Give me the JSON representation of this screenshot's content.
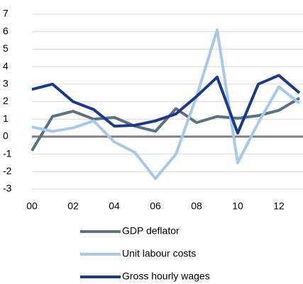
{
  "chart_data": {
    "type": "line",
    "categories": [
      "00",
      null,
      "02",
      null,
      "04",
      null,
      "06",
      null,
      "08",
      null,
      "10",
      null,
      "12",
      null
    ],
    "series": [
      {
        "name": "GDP deflator",
        "color": "#5b7282",
        "values": [
          -0.8,
          1.15,
          1.45,
          1.0,
          1.1,
          0.6,
          0.3,
          1.6,
          0.8,
          1.15,
          1.05,
          1.2,
          1.5,
          2.2
        ]
      },
      {
        "name": "Unit labour costs",
        "color": "#a9c9ea",
        "values": [
          0.55,
          0.3,
          0.5,
          0.9,
          -0.3,
          -0.9,
          -2.4,
          -1.0,
          2.3,
          6.1,
          -1.5,
          0.8,
          2.85,
          1.9
        ]
      },
      {
        "name": "Gross hourly wages",
        "color": "#1c3a8c",
        "values": [
          2.7,
          3.0,
          2.0,
          1.55,
          0.6,
          0.65,
          0.9,
          1.3,
          2.3,
          3.4,
          0.2,
          3.0,
          3.5,
          2.5
        ]
      }
    ],
    "ylim": [
      -3,
      7
    ],
    "yticks": [
      -3,
      -2,
      -1,
      0,
      1,
      2,
      3,
      4,
      5,
      6,
      7
    ],
    "grid": true
  }
}
